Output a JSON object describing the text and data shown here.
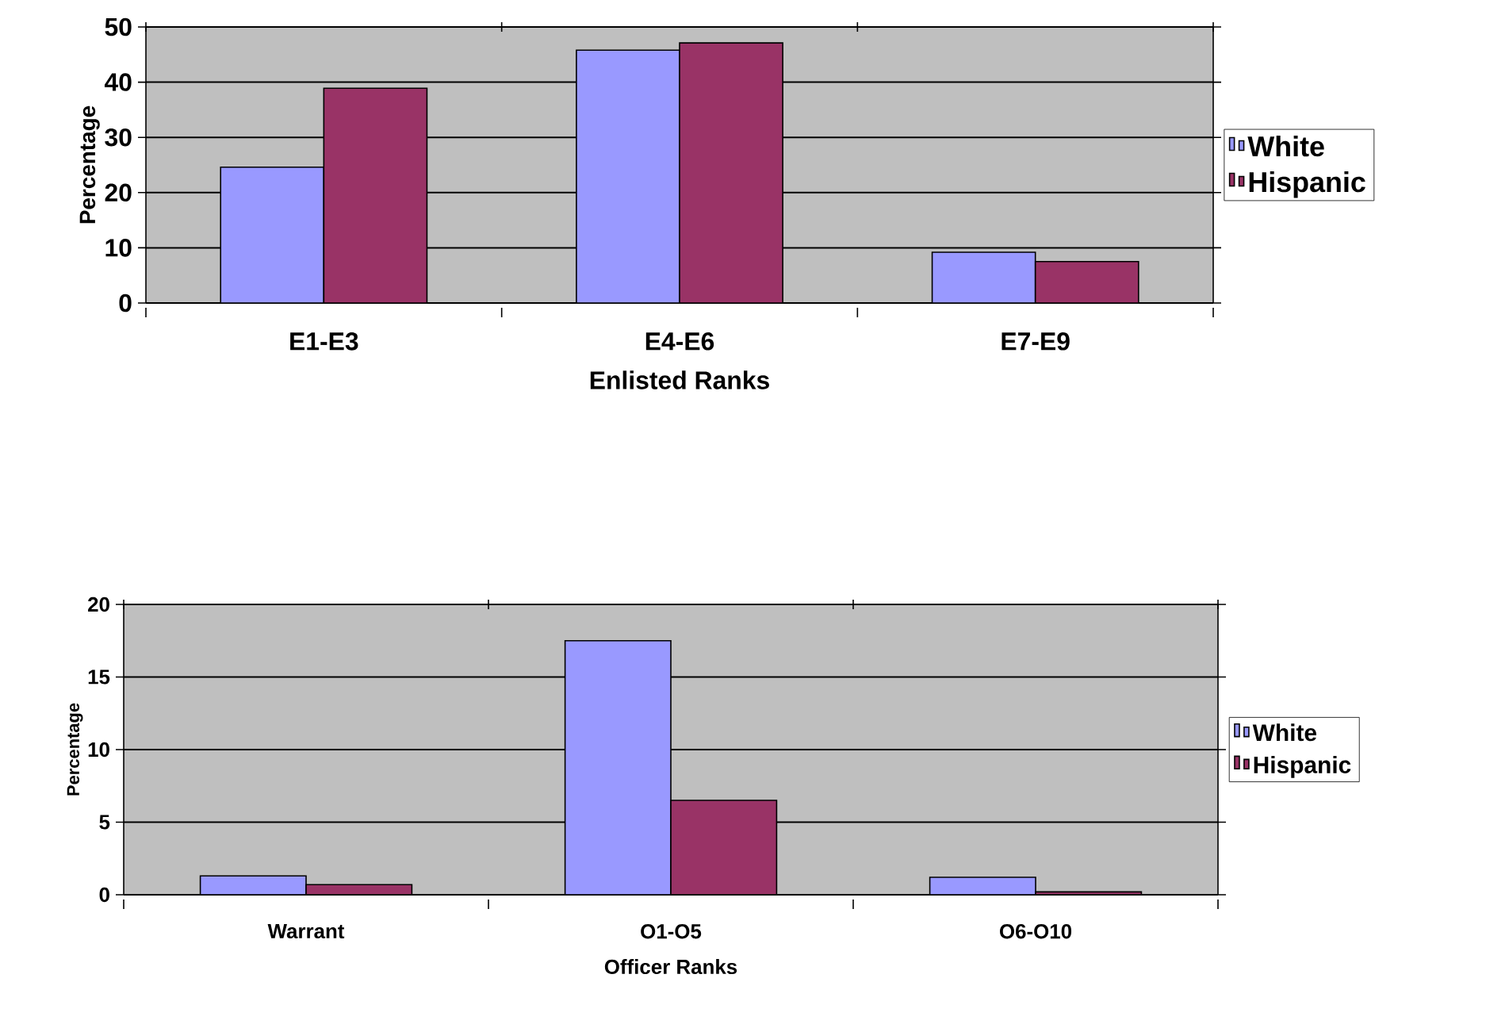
{
  "chart_data": [
    {
      "type": "bar",
      "categories": [
        "E1-E3",
        "E4-E6",
        "E7-E9"
      ],
      "xlabel": "Enlisted Ranks",
      "ylabel": "Percentage",
      "ylim": [
        0,
        50
      ],
      "yticks": [
        0,
        10,
        20,
        30,
        40,
        50
      ],
      "grid": "y",
      "legend": "right",
      "series": [
        {
          "name": "White",
          "color": "#9999ff",
          "values": [
            24.6,
            45.8,
            9.2
          ]
        },
        {
          "name": "Hispanic",
          "color": "#993366",
          "values": [
            38.9,
            47.1,
            7.5
          ]
        }
      ]
    },
    {
      "type": "bar",
      "categories": [
        "Warrant",
        "O1-O5",
        "O6-O10"
      ],
      "xlabel": "Officer Ranks",
      "ylabel": "Percentage",
      "ylim": [
        0,
        20
      ],
      "yticks": [
        0,
        5,
        10,
        15,
        20
      ],
      "grid": "y",
      "legend": "right",
      "series": [
        {
          "name": "White",
          "color": "#9999ff",
          "values": [
            1.3,
            17.5,
            1.2
          ]
        },
        {
          "name": "Hispanic",
          "color": "#993366",
          "values": [
            0.7,
            6.5,
            0.2
          ]
        }
      ]
    }
  ]
}
